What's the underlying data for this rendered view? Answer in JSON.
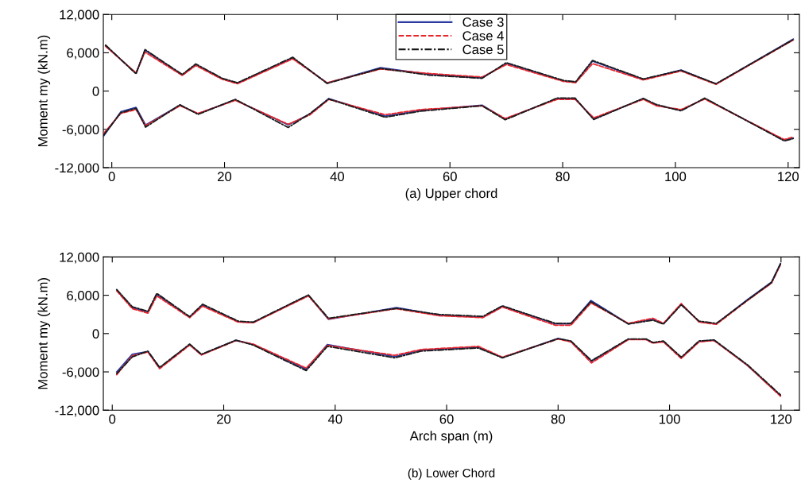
{
  "chart_data": [
    {
      "type": "line",
      "xlabel": "(a) Upper chord",
      "ylabel": "Moment my (kN.m)",
      "xlim": [
        -1.5,
        122
      ],
      "ylim": [
        -12000,
        12000
      ],
      "xticks": [
        0,
        20,
        40,
        60,
        80,
        100,
        120
      ],
      "yticks": [
        {
          "value": -12000,
          "label": "-12,000"
        },
        {
          "value": -6000,
          "label": "-6,000"
        },
        0,
        {
          "value": 6000,
          "label": "6,000"
        },
        {
          "value": 12000,
          "label": "12,000"
        }
      ],
      "grid": false,
      "legend": "top",
      "series": [
        {
          "name": "Case 3",
          "color": "#2b3aa0",
          "line_style": "solid",
          "x": [
            -1.1,
            4.3,
            5.9,
            12.5,
            14.9,
            19.6,
            22.3,
            32.1,
            38.2,
            47.7,
            56.3,
            65.7,
            70,
            80.2,
            82.3,
            85.3,
            94.3,
            101,
            107.2,
            120.9
          ],
          "values": [
            7130,
            2770,
            6400,
            2500,
            4150,
            1930,
            1250,
            5170,
            1250,
            3660,
            2630,
            2070,
            4350,
            1590,
            1390,
            4690,
            1800,
            3310,
            1100,
            8130
          ]
        },
        {
          "color": "#2b3aa0",
          "line_style": "solid",
          "x": [
            -1.5,
            1.6,
            4.3,
            6.0,
            12.1,
            15.3,
            21.9,
            31.3,
            35.2,
            38.5,
            48.5,
            54.8,
            65.7,
            69.8,
            79,
            82.2,
            85.5,
            94.3,
            96.6,
            101,
            105.2,
            119.3,
            120.9
          ],
          "values": [
            -7100,
            -3250,
            -2550,
            -5300,
            -2200,
            -3570,
            -1380,
            -5300,
            -3570,
            -1170,
            -3920,
            -3030,
            -2200,
            -4400,
            -1170,
            -1170,
            -4400,
            -1170,
            -2200,
            -3030,
            -1170,
            -7710,
            -7370
          ]
        },
        {
          "name": "Case 4",
          "color": "#e8262c",
          "line_style": "dashed",
          "x": [
            -1.1,
            4.3,
            5.9,
            12.5,
            14.9,
            19.6,
            22.3,
            32.1,
            38.2,
            47.7,
            56.3,
            65.7,
            70,
            80.2,
            82.3,
            85.3,
            94.3,
            101,
            107.2,
            120.9
          ],
          "values": [
            7000,
            2850,
            6100,
            2450,
            4000,
            1850,
            1150,
            5050,
            1300,
            3450,
            2750,
            2200,
            4150,
            1500,
            1300,
            4300,
            1750,
            3150,
            1050,
            8000
          ]
        },
        {
          "color": "#e8262c",
          "line_style": "dashed",
          "x": [
            -1.5,
            1.6,
            4.3,
            6.0,
            12.1,
            15.3,
            21.9,
            31.3,
            35.2,
            38.5,
            48.5,
            54.8,
            65.7,
            69.8,
            79,
            82.2,
            85.5,
            94.3,
            96.6,
            101,
            105.2,
            119.3,
            120.9
          ],
          "values": [
            -6700,
            -3500,
            -2900,
            -5400,
            -2300,
            -3500,
            -1450,
            -5200,
            -3700,
            -1300,
            -3700,
            -2900,
            -2300,
            -4300,
            -1300,
            -1300,
            -4200,
            -1300,
            -2300,
            -2900,
            -1250,
            -7600,
            -7200
          ]
        },
        {
          "name": "Case 5",
          "color": "#1a1a1a",
          "line_style": "dashdot",
          "x": [
            -1.1,
            4.3,
            5.9,
            12.5,
            14.9,
            19.6,
            22.3,
            32.1,
            38.2,
            47.7,
            56.3,
            65.7,
            70,
            80.2,
            82.3,
            85.3,
            94.3,
            101,
            107.2,
            120.9
          ],
          "values": [
            7200,
            2700,
            6500,
            2600,
            4250,
            2000,
            1300,
            5300,
            1200,
            3550,
            2500,
            2000,
            4450,
            1650,
            1450,
            4800,
            1900,
            3250,
            1150,
            8050
          ]
        },
        {
          "color": "#1a1a1a",
          "line_style": "dashdot",
          "x": [
            -1.5,
            1.6,
            4.3,
            6.0,
            12.1,
            15.3,
            21.9,
            31.3,
            35.2,
            38.5,
            48.5,
            54.8,
            65.7,
            69.8,
            79,
            82.2,
            85.5,
            94.3,
            96.6,
            101,
            105.2,
            119.3,
            120.9
          ],
          "values": [
            -6950,
            -3400,
            -2700,
            -5650,
            -2150,
            -3650,
            -1300,
            -5700,
            -3500,
            -1250,
            -4100,
            -3150,
            -2300,
            -4500,
            -1100,
            -1100,
            -4450,
            -1150,
            -2100,
            -3100,
            -1100,
            -7800,
            -7450
          ]
        }
      ]
    },
    {
      "type": "line",
      "xlabel": "Arch span (m)",
      "ylabel": "Moment my (kN.m)",
      "annotations": [
        "(b) Lower Chord"
      ],
      "xlim": [
        -1.6,
        123.3
      ],
      "ylim": [
        -12000,
        12000
      ],
      "xticks": [
        0,
        20,
        40,
        60,
        80,
        100,
        120
      ],
      "yticks": [
        {
          "value": -12000,
          "label": "-12,000"
        },
        {
          "value": -6000,
          "label": "-6,000"
        },
        0,
        {
          "value": 6000,
          "label": "6,000"
        },
        {
          "value": 12000,
          "label": "12,000"
        }
      ],
      "grid": false,
      "series": [
        {
          "color": "#2b3aa0",
          "line_style": "solid",
          "x": [
            0.8,
            3.6,
            6.4,
            8,
            13.9,
            16.2,
            22.6,
            25.3,
            35.2,
            38.8,
            51,
            58.6,
            66.5,
            70,
            79.5,
            82.3,
            85.9,
            92.6,
            97,
            98.9,
            102.1,
            105.3,
            108.4,
            114,
            118.3,
            119.9
          ],
          "values": [
            6830,
            4080,
            3390,
            6150,
            2570,
            4490,
            1870,
            1740,
            6000,
            2220,
            4080,
            2900,
            2570,
            4290,
            1530,
            1530,
            5180,
            1530,
            2220,
            1530,
            4630,
            1870,
            1530,
            5320,
            8070,
            10960
          ]
        },
        {
          "color": "#2b3aa0",
          "line_style": "solid",
          "x": [
            0.8,
            3.6,
            6.4,
            8.5,
            13.9,
            16,
            22.2,
            25.3,
            34.8,
            38.6,
            50.7,
            55.4,
            65.7,
            70,
            80,
            82.3,
            86,
            92.6,
            95.8,
            97,
            98.9,
            102.1,
            105.3,
            108,
            114,
            119.9
          ],
          "values": [
            -6000,
            -3250,
            -2810,
            -5360,
            -1710,
            -3290,
            -1020,
            -1710,
            -5570,
            -1710,
            -3630,
            -2600,
            -2120,
            -3770,
            -740,
            -1230,
            -4330,
            -880,
            -880,
            -1440,
            -1230,
            -3770,
            -1230,
            -1020,
            -5010,
            -9700
          ]
        },
        {
          "color": "#e8262c",
          "line_style": "dashed",
          "x": [
            0.8,
            3.6,
            6.4,
            8,
            13.9,
            16.2,
            22.6,
            25.3,
            35.2,
            38.8,
            51,
            58.6,
            66.5,
            70,
            79.5,
            82.3,
            85.9,
            92.6,
            97,
            98.9,
            102.1,
            105.3,
            108.4,
            114,
            118.3,
            119.9
          ],
          "values": [
            6700,
            3900,
            3200,
            5900,
            2500,
            4300,
            1800,
            1700,
            5900,
            2300,
            3900,
            2800,
            2500,
            4150,
            1300,
            1300,
            4800,
            1600,
            2400,
            1600,
            4700,
            1800,
            1450,
            5200,
            7900,
            10800
          ]
        },
        {
          "color": "#e8262c",
          "line_style": "dashed",
          "x": [
            0.8,
            3.6,
            6.4,
            8.5,
            13.9,
            16,
            22.2,
            25.3,
            34.8,
            38.6,
            50.7,
            55.4,
            65.7,
            70,
            80,
            82.3,
            86,
            92.6,
            95.8,
            97,
            98.9,
            102.1,
            105.3,
            108,
            114,
            119.9
          ],
          "values": [
            -6450,
            -3450,
            -2900,
            -5500,
            -1800,
            -3350,
            -1100,
            -1650,
            -5400,
            -1850,
            -3400,
            -2500,
            -2000,
            -3700,
            -850,
            -1300,
            -4600,
            -950,
            -950,
            -1500,
            -1300,
            -3900,
            -1300,
            -1100,
            -5000,
            -9800
          ]
        },
        {
          "color": "#1a1a1a",
          "line_style": "dashdot",
          "x": [
            0.8,
            3.6,
            6.4,
            8,
            13.9,
            16.2,
            22.6,
            25.3,
            35.2,
            38.8,
            51,
            58.6,
            66.5,
            70,
            79.5,
            82.3,
            85.9,
            92.6,
            97,
            98.9,
            102.1,
            105.3,
            108.4,
            114,
            118.3,
            119.9
          ],
          "values": [
            6900,
            4200,
            3500,
            6300,
            2650,
            4600,
            1950,
            1800,
            6050,
            2400,
            3950,
            3000,
            2700,
            4350,
            1600,
            1600,
            5000,
            1500,
            2100,
            1500,
            4500,
            1950,
            1600,
            5250,
            8000,
            10900
          ]
        },
        {
          "color": "#1a1a1a",
          "line_style": "dashdot",
          "x": [
            0.8,
            3.6,
            6.4,
            8.5,
            13.9,
            16,
            22.2,
            25.3,
            34.8,
            38.6,
            50.7,
            55.4,
            65.7,
            70,
            80,
            82.3,
            86,
            92.6,
            95.8,
            97,
            98.9,
            102.1,
            105.3,
            108,
            114,
            119.9
          ],
          "values": [
            -6250,
            -3650,
            -2750,
            -5300,
            -1650,
            -3250,
            -1050,
            -1800,
            -5800,
            -2000,
            -3800,
            -2750,
            -2250,
            -3800,
            -800,
            -1150,
            -4250,
            -850,
            -850,
            -1400,
            -1150,
            -3700,
            -1150,
            -1000,
            -4900,
            -9600
          ]
        }
      ]
    }
  ]
}
